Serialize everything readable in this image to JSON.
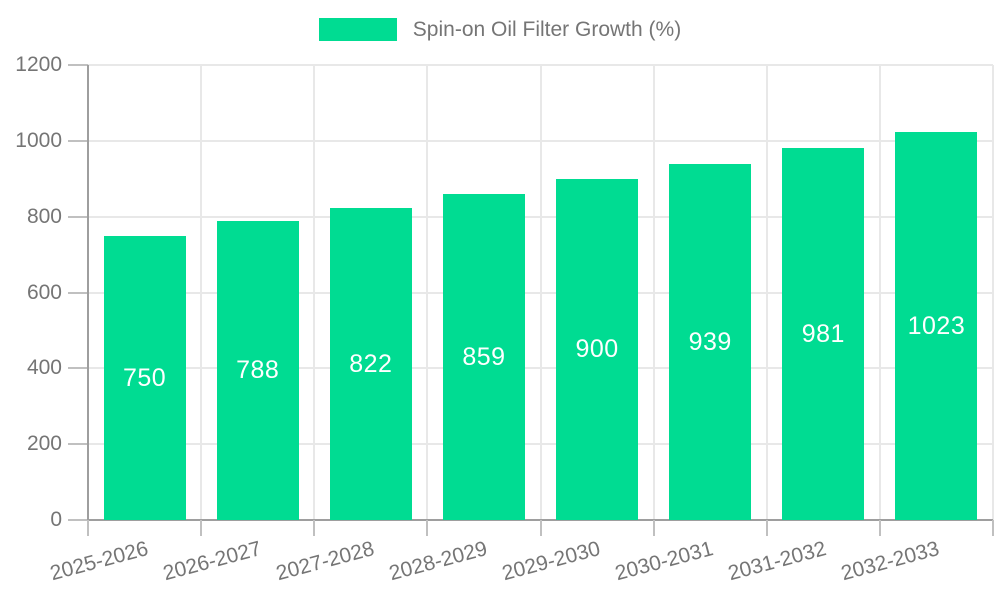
{
  "chart_data": {
    "type": "bar",
    "title": "Spin-on Oil Filter Growth (%)",
    "categories": [
      "2025-2026",
      "2026-2027",
      "2027-2028",
      "2028-2029",
      "2029-2030",
      "2030-2031",
      "2031-2032",
      "2032-2033"
    ],
    "values": [
      750,
      788,
      822,
      859,
      900,
      939,
      981,
      1023
    ],
    "yticks": [
      0,
      200,
      400,
      600,
      800,
      1000,
      1200
    ],
    "ylim": [
      0,
      1200
    ],
    "xlabel": "",
    "ylabel": "",
    "grid": true,
    "legend_position": "top-center",
    "x_label_rotation_deg": -15,
    "colors": {
      "bar": "#00DC92",
      "value_label": "#ffffff",
      "axis_label": "#757575",
      "legend_text": "#757575",
      "axis_line": "#9e9e9e",
      "tick": "#c0c0c0",
      "gridline": "#e8e8e8",
      "background": "#ffffff"
    }
  }
}
